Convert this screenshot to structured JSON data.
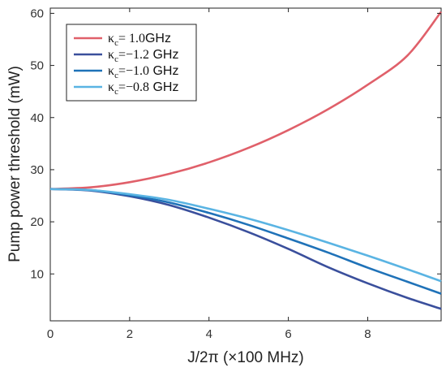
{
  "chart_data": {
    "type": "line",
    "xlabel": "J/2π (×100 MHz)",
    "ylabel": "Pump power threshold (mW)",
    "xlim": [
      0,
      9.85
    ],
    "ylim": [
      1,
      61
    ],
    "xticks": [
      "0",
      "2",
      "4",
      "6",
      "8"
    ],
    "yticks": [
      "10",
      "20",
      "30",
      "40",
      "50",
      "60"
    ],
    "grid": false,
    "legend_position": "top-left",
    "series": [
      {
        "name": "κc= 1.0GHz",
        "legend": {
          "symbol": "κ",
          "sub": "c",
          "value": "= 1.0",
          "unit": "GHz"
        },
        "color": "#e0606a",
        "x": [
          0,
          1,
          2,
          3,
          4,
          5,
          6,
          7,
          8,
          9,
          9.85
        ],
        "y": [
          26.3,
          26.6,
          27.6,
          29.2,
          31.4,
          34.2,
          37.6,
          41.6,
          46.3,
          51.9,
          60.3
        ]
      },
      {
        "name": "κc=−1.2 GHz",
        "legend": {
          "symbol": "κ",
          "sub": "c",
          "value": "=−1.2",
          "unit": " GHz"
        },
        "color": "#3a4f9c",
        "x": [
          0,
          1,
          2,
          3,
          4,
          5,
          6,
          7,
          8,
          9,
          9.85
        ],
        "y": [
          26.3,
          26.0,
          24.9,
          23.2,
          20.8,
          18.0,
          14.8,
          11.3,
          8.2,
          5.4,
          3.3
        ]
      },
      {
        "name": "κc=−1.0 GHz",
        "legend": {
          "symbol": "κ",
          "sub": "c",
          "value": "=−1.0",
          "unit": " GHz"
        },
        "color": "#1f72b8",
        "x": [
          0,
          1,
          2,
          3,
          4,
          5,
          6,
          7,
          8,
          9,
          9.85
        ],
        "y": [
          26.3,
          26.1,
          25.1,
          23.7,
          21.7,
          19.4,
          16.8,
          14.1,
          11.2,
          8.5,
          6.2
        ]
      },
      {
        "name": "κc=−0.8 GHz",
        "legend": {
          "symbol": "κ",
          "sub": "c",
          "value": "=−0.8",
          "unit": " GHz"
        },
        "color": "#5ab4e3",
        "x": [
          0,
          1,
          2,
          3,
          4,
          5,
          6,
          7,
          8,
          9,
          9.85
        ],
        "y": [
          26.3,
          26.1,
          25.3,
          24.2,
          22.5,
          20.6,
          18.4,
          16.0,
          13.5,
          10.9,
          8.6
        ]
      }
    ]
  }
}
